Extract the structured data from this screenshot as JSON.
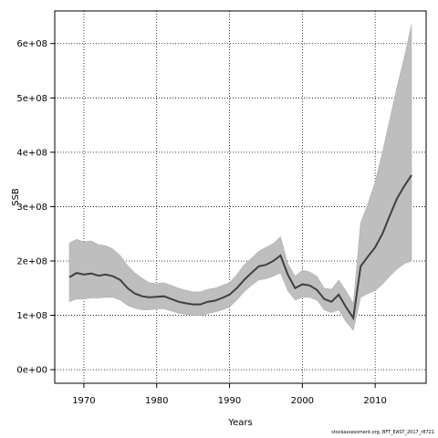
{
  "chart_data": {
    "type": "area",
    "title": "",
    "xlabel": "Years",
    "ylabel": "SSB",
    "xlim": [
      1966,
      2017
    ],
    "ylim": [
      -25000000,
      660000000
    ],
    "x_ticks": [
      1970,
      1980,
      1990,
      2000,
      2010
    ],
    "y_ticks": [
      0,
      100000000,
      200000000,
      300000000,
      400000000,
      500000000,
      600000000
    ],
    "x_tick_labels": [
      "1970",
      "1980",
      "1990",
      "2000",
      "2010"
    ],
    "y_tick_labels": [
      "0e+00",
      "1e+08",
      "2e+08",
      "3e+08",
      "4e+08",
      "5e+08",
      "6e+08"
    ],
    "grid": true,
    "colors": {
      "line": "#404040",
      "band": "#bebebe",
      "grid": "#000000"
    },
    "series": [
      {
        "x": [
          1968,
          1969,
          1970,
          1971,
          1972,
          1973,
          1974,
          1975,
          1976,
          1977,
          1978,
          1979,
          1980,
          1981,
          1982,
          1983,
          1984,
          1985,
          1986,
          1987,
          1988,
          1989,
          1990,
          1991,
          1992,
          1993,
          1994,
          1995,
          1996,
          1997,
          1998,
          1999,
          2000,
          2001,
          2002,
          2003,
          2004,
          2005,
          2006,
          2007,
          2008,
          2009,
          2010,
          2011,
          2012,
          2013,
          2014,
          2015
        ],
        "values": [
          170000000,
          178000000,
          175000000,
          177000000,
          173000000,
          175000000,
          172000000,
          165000000,
          150000000,
          140000000,
          135000000,
          133000000,
          134000000,
          135000000,
          130000000,
          125000000,
          122000000,
          120000000,
          120000000,
          125000000,
          127000000,
          132000000,
          138000000,
          150000000,
          165000000,
          178000000,
          190000000,
          193000000,
          200000000,
          210000000,
          175000000,
          150000000,
          157000000,
          155000000,
          147000000,
          130000000,
          125000000,
          138000000,
          115000000,
          95000000,
          190000000,
          208000000,
          225000000,
          250000000,
          283000000,
          315000000,
          338000000,
          358000000
        ],
        "lower": [
          125000000,
          130000000,
          130000000,
          132000000,
          132000000,
          133000000,
          133000000,
          128000000,
          118000000,
          113000000,
          110000000,
          110000000,
          112000000,
          112000000,
          108000000,
          104000000,
          102000000,
          100000000,
          100000000,
          103000000,
          106000000,
          110000000,
          115000000,
          128000000,
          143000000,
          155000000,
          165000000,
          167000000,
          172000000,
          178000000,
          145000000,
          128000000,
          133000000,
          133000000,
          128000000,
          110000000,
          105000000,
          110000000,
          88000000,
          72000000,
          133000000,
          140000000,
          145000000,
          157000000,
          172000000,
          185000000,
          195000000,
          200000000
        ],
        "upper": [
          233000000,
          240000000,
          235000000,
          237000000,
          230000000,
          228000000,
          222000000,
          210000000,
          192000000,
          178000000,
          168000000,
          160000000,
          158000000,
          160000000,
          155000000,
          150000000,
          146000000,
          143000000,
          143000000,
          148000000,
          150000000,
          155000000,
          160000000,
          175000000,
          193000000,
          205000000,
          218000000,
          225000000,
          232000000,
          245000000,
          195000000,
          172000000,
          183000000,
          180000000,
          172000000,
          150000000,
          148000000,
          165000000,
          145000000,
          122000000,
          270000000,
          305000000,
          345000000,
          400000000,
          460000000,
          520000000,
          575000000,
          635000000
        ]
      }
    ]
  },
  "footer": "stockassessment.org, BFT_EAST_2017_r8721"
}
